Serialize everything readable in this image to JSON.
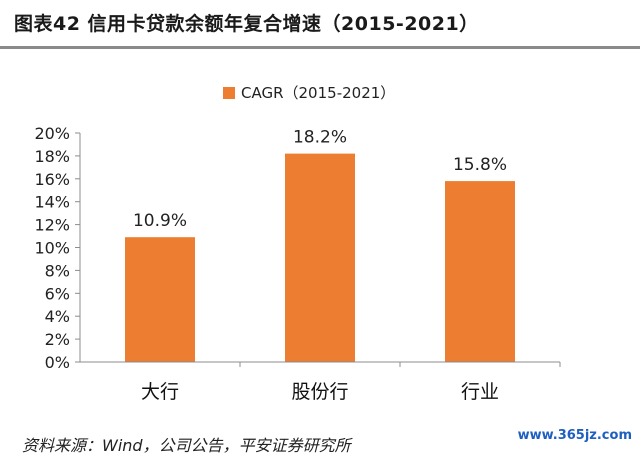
{
  "header": {
    "title": "图表42 信用卡贷款余额年复合增速（2015-2021）"
  },
  "chart_data": {
    "type": "bar",
    "categories": [
      "大行",
      "股份行",
      "行业"
    ],
    "series": [
      {
        "name": "CAGR（2015-2021）",
        "values": [
          10.9,
          18.2,
          15.8
        ]
      }
    ],
    "data_labels": [
      "10.9%",
      "18.2%",
      "15.8%"
    ],
    "y_ticks": [
      "0%",
      "2%",
      "4%",
      "6%",
      "8%",
      "10%",
      "12%",
      "14%",
      "16%",
      "18%",
      "20%"
    ],
    "ylim": [
      0,
      20
    ],
    "grid": false,
    "legend_position": "top-center",
    "colors": {
      "bar": "#ED7D31",
      "axis": "#8c8c8c"
    }
  },
  "footer": {
    "source": "资料来源：Wind，公司公告，平安证券研究所",
    "watermark": "www.365jz.com"
  }
}
